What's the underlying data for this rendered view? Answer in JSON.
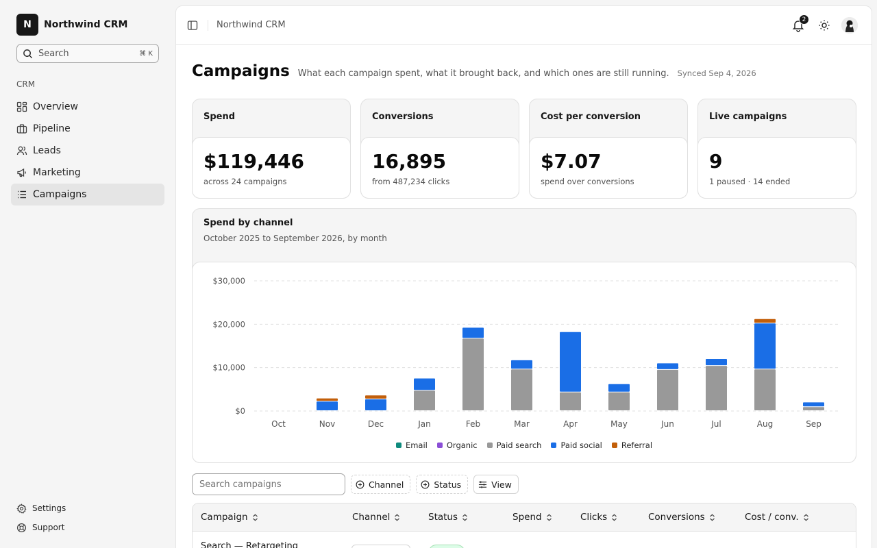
{
  "app": {
    "name": "Northwind CRM",
    "logo_letter": "N"
  },
  "sidebar": {
    "search_placeholder": "Search",
    "search_kbd": "⌘ K",
    "section_label": "CRM",
    "items": [
      {
        "label": "Overview",
        "icon": "dashboard-icon"
      },
      {
        "label": "Pipeline",
        "icon": "briefcase-icon"
      },
      {
        "label": "Leads",
        "icon": "users-icon"
      },
      {
        "label": "Marketing",
        "icon": "megaphone-icon"
      },
      {
        "label": "Campaigns",
        "icon": "list-icon",
        "active": true
      }
    ],
    "footer_items": [
      {
        "label": "Settings",
        "icon": "gear-icon"
      },
      {
        "label": "Support",
        "icon": "lifebuoy-icon"
      }
    ]
  },
  "topbar": {
    "title": "Northwind CRM",
    "notification_count": "2"
  },
  "page": {
    "title": "Campaigns",
    "description": "What each campaign spent, what it brought back, and which ones are still running.",
    "synced": "Synced Sep 4, 2026"
  },
  "kpis": [
    {
      "label": "Spend",
      "value": "$119,446",
      "sub": "across 24 campaigns"
    },
    {
      "label": "Conversions",
      "value": "16,895",
      "sub": "from 487,234 clicks"
    },
    {
      "label": "Cost per conversion",
      "value": "$7.07",
      "sub": "spend over conversions"
    },
    {
      "label": "Live campaigns",
      "value": "9",
      "sub": "1 paused · 14 ended"
    }
  ],
  "chart_card": {
    "title": "Spend by channel",
    "subtitle": "October 2025 to September 2026, by month"
  },
  "chart_data": {
    "type": "bar",
    "stacked": true,
    "categories": [
      "Oct",
      "Nov",
      "Dec",
      "Jan",
      "Feb",
      "Mar",
      "Apr",
      "May",
      "Jun",
      "Jul",
      "Aug",
      "Sep"
    ],
    "ylim": [
      0,
      30000
    ],
    "yticks": [
      0,
      10000,
      20000,
      30000
    ],
    "ytick_labels": [
      "$0",
      "$10,000",
      "$20,000",
      "$30,000"
    ],
    "grid": true,
    "legend_position": "bottom",
    "series": [
      {
        "name": "Email",
        "color": "#0f8b7e",
        "values": [
          0,
          0,
          0,
          0,
          0,
          0,
          0,
          0,
          0,
          0,
          0,
          0
        ]
      },
      {
        "name": "Organic",
        "color": "#8b4fd6",
        "values": [
          0,
          0,
          0,
          0,
          0,
          0,
          0,
          0,
          0,
          0,
          0,
          0
        ]
      },
      {
        "name": "Paid search",
        "color": "#999999",
        "values": [
          0,
          0,
          0,
          4700,
          16700,
          9600,
          4300,
          4300,
          9500,
          10400,
          9600,
          900
        ]
      },
      {
        "name": "Paid social",
        "color": "#1a6ee6",
        "values": [
          0,
          2200,
          2700,
          2800,
          2500,
          2100,
          13900,
          1900,
          1500,
          1600,
          10600,
          1100
        ]
      },
      {
        "name": "Referral",
        "color": "#c25f0a",
        "values": [
          0,
          700,
          900,
          0,
          0,
          0,
          0,
          0,
          0,
          0,
          1000,
          0
        ]
      }
    ]
  },
  "filters": {
    "search_placeholder": "Search campaigns",
    "channel_label": "Channel",
    "status_label": "Status",
    "view_label": "View"
  },
  "table": {
    "columns": [
      "Campaign",
      "Channel",
      "Status",
      "Spend",
      "Clicks",
      "Conversions",
      "Cost / conv."
    ],
    "rows": [
      {
        "campaign": "Search — Retargeting"
      }
    ]
  }
}
